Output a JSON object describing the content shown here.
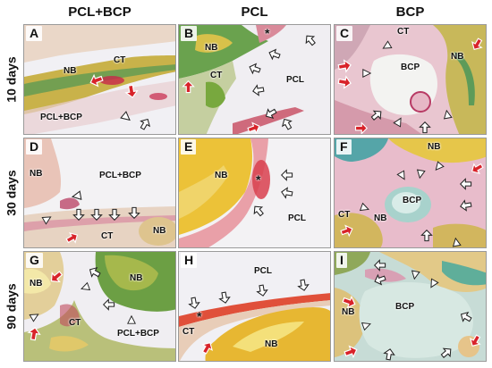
{
  "columns": [
    "PCL+BCP",
    "PCL",
    "BCP"
  ],
  "rows": [
    "10 days",
    "30 days",
    "90 days"
  ],
  "panels": [
    {
      "letter": "A",
      "labels": [
        "CT",
        "NB",
        "PCL+BCP"
      ]
    },
    {
      "letter": "B",
      "labels": [
        "NB",
        "CT",
        "PCL",
        "*"
      ]
    },
    {
      "letter": "C",
      "labels": [
        "CT",
        "BCP",
        "NB"
      ]
    },
    {
      "letter": "D",
      "labels": [
        "NB",
        "PCL+BCP",
        "CT",
        "NB"
      ]
    },
    {
      "letter": "E",
      "labels": [
        "NB",
        "*",
        "PCL"
      ]
    },
    {
      "letter": "F",
      "labels": [
        "NB",
        "BCP",
        "CT",
        "NB"
      ]
    },
    {
      "letter": "G",
      "labels": [
        "NB",
        "NB",
        "CT",
        "PCL+BCP"
      ]
    },
    {
      "letter": "H",
      "labels": [
        "PCL",
        "*",
        "CT",
        "NB"
      ]
    },
    {
      "letter": "I",
      "labels": [
        "NB",
        "BCP"
      ]
    }
  ]
}
